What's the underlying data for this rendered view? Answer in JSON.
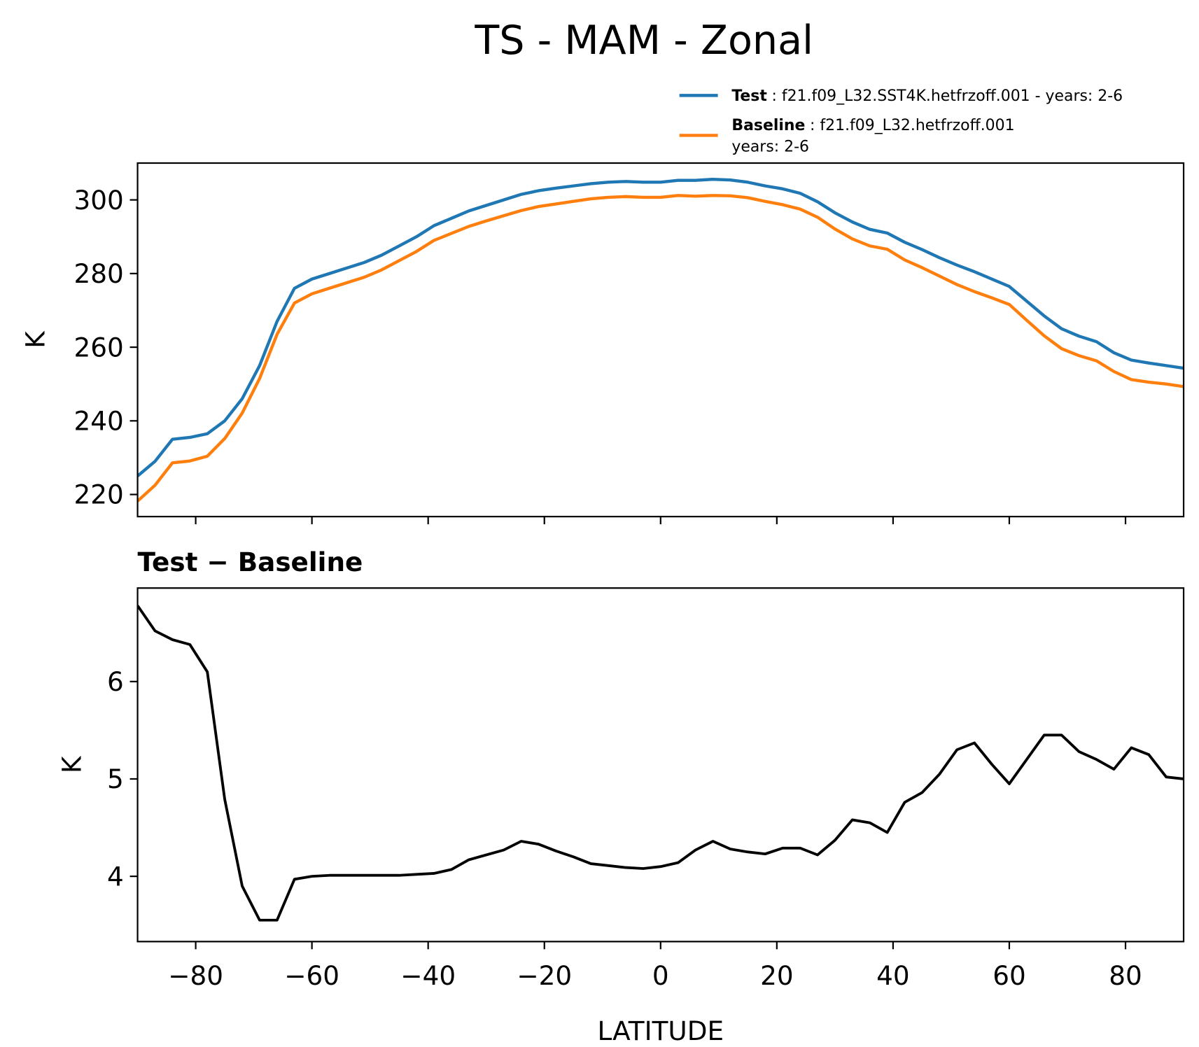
{
  "title": "TS - MAM - Zonal",
  "chart_data": [
    {
      "type": "line",
      "ylabel": "K",
      "xlim": [
        -90,
        90
      ],
      "ylim": [
        214,
        310
      ],
      "xticks": [
        -80,
        -60,
        -40,
        -20,
        0,
        20,
        40,
        60,
        80
      ],
      "yticks": [
        220,
        240,
        260,
        280,
        300
      ],
      "legend": "top-right",
      "x": [
        -90,
        -87,
        -84,
        -81,
        -78,
        -75,
        -72,
        -69,
        -66,
        -63,
        -60,
        -57,
        -54,
        -51,
        -48,
        -45,
        -42,
        -39,
        -36,
        -33,
        -30,
        -27,
        -24,
        -21,
        -18,
        -15,
        -12,
        -9,
        -6,
        -3,
        0,
        3,
        6,
        9,
        12,
        15,
        18,
        21,
        24,
        27,
        30,
        33,
        36,
        39,
        42,
        45,
        48,
        51,
        54,
        57,
        60,
        63,
        66,
        69,
        72,
        75,
        78,
        81,
        84,
        87,
        90
      ],
      "series": [
        {
          "name": "Test",
          "label": [
            ": f21.f09_L32.SST4K.hetfrzoff.001 - years: 2-6"
          ],
          "color": "#1f77b4",
          "values": [
            225,
            229,
            235,
            235.5,
            236.5,
            240,
            246,
            255,
            267,
            276,
            278.5,
            280,
            281.5,
            283,
            285,
            287.5,
            290,
            293,
            295,
            297,
            298.5,
            300,
            301.5,
            302.5,
            303.2,
            303.8,
            304.4,
            304.8,
            305,
            304.8,
            304.8,
            305.3,
            305.3,
            305.6,
            305.4,
            304.8,
            303.8,
            303,
            301.8,
            299.5,
            296.5,
            294,
            292,
            291,
            288.5,
            286.5,
            284.3,
            282.3,
            280.5,
            278.5,
            276.5,
            272.5,
            268.5,
            265,
            263,
            261.5,
            258.5,
            256.5,
            255.7,
            255,
            254.3
          ]
        },
        {
          "name": "Baseline",
          "label": [
            ": f21.f09_L32.hetfrzoff.001",
            "years: 2-6"
          ],
          "color": "#ff7f0e",
          "values": [
            218.2,
            222.5,
            228.6,
            229.1,
            230.4,
            235.2,
            242.1,
            251.5,
            263.5,
            272.0,
            274.5,
            276.0,
            277.5,
            279.0,
            281.0,
            283.5,
            286.0,
            289.0,
            290.9,
            292.8,
            294.3,
            295.7,
            297.1,
            298.2,
            298.9,
            299.6,
            300.3,
            300.7,
            300.9,
            300.7,
            300.7,
            301.2,
            301.0,
            301.2,
            301.1,
            300.6,
            299.6,
            298.7,
            297.5,
            295.3,
            292.1,
            289.4,
            287.5,
            286.6,
            283.7,
            281.6,
            279.3,
            277.0,
            275.1,
            273.4,
            271.6,
            267.3,
            263.1,
            259.6,
            257.7,
            256.3,
            253.4,
            251.2,
            250.5,
            250.0,
            249.3
          ]
        }
      ]
    },
    {
      "type": "line",
      "title": "Test − Baseline",
      "xlabel": "LATITUDE",
      "ylabel": "K",
      "xlim": [
        -90,
        90
      ],
      "ylim": [
        3.33,
        6.96
      ],
      "xticks": [
        {
          "value": -80,
          "label": "−80"
        },
        {
          "value": -60,
          "label": "−60"
        },
        {
          "value": -40,
          "label": "−40"
        },
        {
          "value": -20,
          "label": "−20"
        },
        0,
        20,
        40,
        60,
        80
      ],
      "yticks": [
        4,
        5,
        6
      ],
      "x": [
        -90,
        -87,
        -84,
        -81,
        -78,
        -75,
        -72,
        -69,
        -66,
        -63,
        -60,
        -57,
        -54,
        -51,
        -48,
        -45,
        -42,
        -39,
        -36,
        -33,
        -30,
        -27,
        -24,
        -21,
        -18,
        -15,
        -12,
        -9,
        -6,
        -3,
        0,
        3,
        6,
        9,
        12,
        15,
        18,
        21,
        24,
        27,
        30,
        33,
        36,
        39,
        42,
        45,
        48,
        51,
        54,
        57,
        60,
        63,
        66,
        69,
        72,
        75,
        78,
        81,
        84,
        87,
        90
      ],
      "color": "#000000",
      "values": [
        6.78,
        6.52,
        6.43,
        6.38,
        6.1,
        4.79,
        3.9,
        3.55,
        3.55,
        3.97,
        4.0,
        4.01,
        4.01,
        4.01,
        4.01,
        4.01,
        4.02,
        4.03,
        4.07,
        4.17,
        4.22,
        4.27,
        4.36,
        4.33,
        4.26,
        4.2,
        4.13,
        4.11,
        4.09,
        4.08,
        4.1,
        4.14,
        4.27,
        4.36,
        4.28,
        4.25,
        4.23,
        4.29,
        4.29,
        4.22,
        4.37,
        4.58,
        4.55,
        4.45,
        4.76,
        4.86,
        5.05,
        5.3,
        5.37,
        5.15,
        4.95,
        5.2,
        5.45,
        5.45,
        5.28,
        5.2,
        5.1,
        5.32,
        5.25,
        5.02,
        5.0
      ]
    }
  ]
}
